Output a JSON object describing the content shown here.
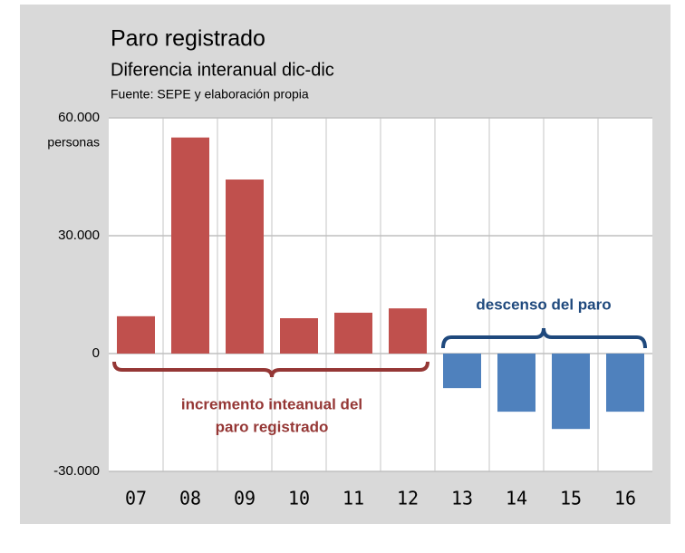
{
  "chart_data": {
    "type": "bar",
    "title": "Paro registrado",
    "subtitle": "Diferencia interanual dic-dic",
    "source": "Fuente: SEPE y elaboración propia",
    "y_axis_label": "personas",
    "categories": [
      "07",
      "08",
      "09",
      "10",
      "11",
      "12",
      "13",
      "14",
      "15",
      "16"
    ],
    "values": [
      9500,
      55000,
      44300,
      9000,
      10400,
      11500,
      -8800,
      -14800,
      -19200,
      -14800
    ],
    "positive_color": "#c0504d",
    "negative_color": "#4f81bd",
    "ylim": [
      -30000,
      60000
    ],
    "yticks": [
      {
        "value": -30000,
        "label": "-30.000"
      },
      0,
      {
        "value": 30000,
        "label": "30.000"
      },
      {
        "value": 60000,
        "label": "60.000"
      }
    ],
    "grid": true,
    "annotation_increase": [
      "incremento inteanual  del",
      "paro registrado"
    ],
    "annotation_decrease": "descenso del paro"
  }
}
